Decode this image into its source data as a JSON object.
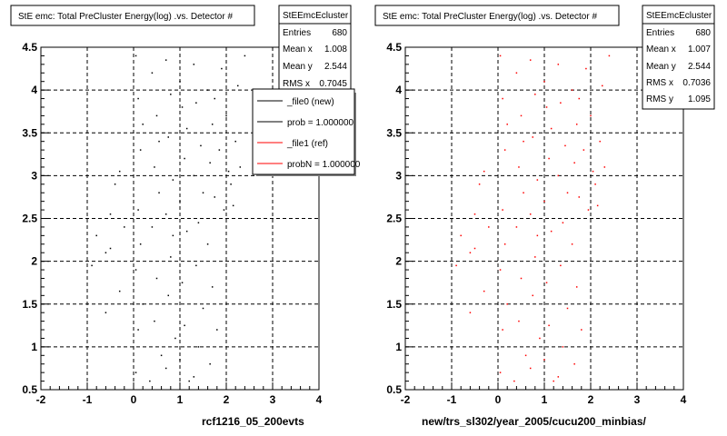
{
  "chart_data": [
    {
      "type": "scatter",
      "title": "StE emc: Total PreCluster Energy(log) .vs. Detector #",
      "xlabel": "rcf1216_05_200evts",
      "ylabel": "",
      "xlim": [
        -2,
        4
      ],
      "ylim": [
        0.5,
        4.5
      ],
      "xticks": [
        "-2",
        "-1",
        "0",
        "1",
        "2",
        "3",
        "4"
      ],
      "yticks": [
        "0.5",
        "1",
        "1.5",
        "2",
        "2.5",
        "3",
        "3.5",
        "4",
        "4.5"
      ],
      "grid": true,
      "series": [
        {
          "name": "_file0 (new)",
          "color": "#000000",
          "values": [
            [
              -0.5,
              2.15
            ],
            [
              -0.3,
              1.65
            ],
            [
              -0.2,
              2.4
            ],
            [
              -0.8,
              2.3
            ],
            [
              -0.4,
              2.9
            ],
            [
              -0.6,
              2.1
            ],
            [
              -0.3,
              3.05
            ],
            [
              -0.9,
              1.95
            ],
            [
              -0.5,
              2.55
            ],
            [
              -0.6,
              1.4
            ],
            [
              0.05,
              4.4
            ],
            [
              0.1,
              3.9
            ],
            [
              0.15,
              3.3
            ],
            [
              0.1,
              2.6
            ],
            [
              0.05,
              1.9
            ],
            [
              0.1,
              1.2
            ],
            [
              0.05,
              0.7
            ],
            [
              0.2,
              3.6
            ],
            [
              0.15,
              2.2
            ],
            [
              0.2,
              1.5
            ],
            [
              0.4,
              4.2
            ],
            [
              0.5,
              3.7
            ],
            [
              0.45,
              3.1
            ],
            [
              0.55,
              2.8
            ],
            [
              0.4,
              2.4
            ],
            [
              0.5,
              1.8
            ],
            [
              0.45,
              1.3
            ],
            [
              0.6,
              0.9
            ],
            [
              0.35,
              0.6
            ],
            [
              0.55,
              3.4
            ],
            [
              0.7,
              4.35
            ],
            [
              0.8,
              3.95
            ],
            [
              0.75,
              3.45
            ],
            [
              0.85,
              2.95
            ],
            [
              0.7,
              2.55
            ],
            [
              0.8,
              2.05
            ],
            [
              0.75,
              1.6
            ],
            [
              0.9,
              1.1
            ],
            [
              0.7,
              0.75
            ],
            [
              0.85,
              2.3
            ],
            [
              1.0,
              4.1
            ],
            [
              1.05,
              3.8
            ],
            [
              1.1,
              3.2
            ],
            [
              1.0,
              2.7
            ],
            [
              1.15,
              2.35
            ],
            [
              1.05,
              1.75
            ],
            [
              1.1,
              1.25
            ],
            [
              1.0,
              0.85
            ],
            [
              1.2,
              0.6
            ],
            [
              1.15,
              3.55
            ],
            [
              1.3,
              4.3
            ],
            [
              1.35,
              3.85
            ],
            [
              1.45,
              3.35
            ],
            [
              1.3,
              3.0
            ],
            [
              1.4,
              2.45
            ],
            [
              1.35,
              1.95
            ],
            [
              1.5,
              1.45
            ],
            [
              1.4,
              1.0
            ],
            [
              1.3,
              0.65
            ],
            [
              1.5,
              2.8
            ],
            [
              1.6,
              4.0
            ],
            [
              1.7,
              3.6
            ],
            [
              1.65,
              3.15
            ],
            [
              1.75,
              2.75
            ],
            [
              1.6,
              2.2
            ],
            [
              1.7,
              1.7
            ],
            [
              1.8,
              1.2
            ],
            [
              1.65,
              0.8
            ],
            [
              1.75,
              3.9
            ],
            [
              1.85,
              3.3
            ],
            [
              1.9,
              4.25
            ],
            [
              2.0,
              3.7
            ],
            [
              2.05,
              3.05
            ],
            [
              1.95,
              2.6
            ],
            [
              2.1,
              2.9
            ],
            [
              2.2,
              3.4
            ],
            [
              2.15,
              2.65
            ],
            [
              2.3,
              3.1
            ],
            [
              2.25,
              4.05
            ],
            [
              2.4,
              4.4
            ]
          ]
        }
      ],
      "stats": {
        "name": "StEEmcEcluster",
        "rows": [
          {
            "k": "Entries",
            "v": "680"
          },
          {
            "k": "Mean x",
            "v": "1.008"
          },
          {
            "k": "Mean y",
            "v": "2.544"
          },
          {
            "k": "RMS x",
            "v": "0.7045"
          }
        ]
      },
      "legend": [
        {
          "label": "_file0 (new)",
          "color": "#000000"
        },
        {
          "label": "prob = 1.000000",
          "color": "#000000"
        },
        {
          "label": "_file1 (ref)",
          "color": "#ff0000"
        },
        {
          "label": "probN = 1.000000",
          "color": "#ff0000"
        }
      ]
    },
    {
      "type": "scatter",
      "title": "StE emc: Total PreCluster Energy(log) .vs. Detector #",
      "xlabel": "new/trs_sl302/year_2005/cucu200_minbias/",
      "ylabel": "",
      "xlim": [
        -2,
        4
      ],
      "ylim": [
        0.5,
        4.5
      ],
      "xticks": [
        "-2",
        "-1",
        "0",
        "1",
        "2",
        "3",
        "4"
      ],
      "yticks": [
        "0.5",
        "1",
        "1.5",
        "2",
        "2.5",
        "3",
        "3.5",
        "4",
        "4.5"
      ],
      "grid": true,
      "series": [
        {
          "name": "_file1 (ref)",
          "color": "#ff0000",
          "values": [
            [
              -0.5,
              2.15
            ],
            [
              -0.3,
              1.65
            ],
            [
              -0.2,
              2.4
            ],
            [
              -0.8,
              2.3
            ],
            [
              -0.4,
              2.9
            ],
            [
              -0.6,
              2.1
            ],
            [
              -0.3,
              3.05
            ],
            [
              -0.9,
              1.95
            ],
            [
              -0.5,
              2.55
            ],
            [
              -0.6,
              1.4
            ],
            [
              0.05,
              4.4
            ],
            [
              0.1,
              3.9
            ],
            [
              0.15,
              3.3
            ],
            [
              0.1,
              2.6
            ],
            [
              0.05,
              1.9
            ],
            [
              0.1,
              1.2
            ],
            [
              0.05,
              0.7
            ],
            [
              0.2,
              3.6
            ],
            [
              0.15,
              2.2
            ],
            [
              0.2,
              1.5
            ],
            [
              0.4,
              4.2
            ],
            [
              0.5,
              3.7
            ],
            [
              0.45,
              3.1
            ],
            [
              0.55,
              2.8
            ],
            [
              0.4,
              2.4
            ],
            [
              0.5,
              1.8
            ],
            [
              0.45,
              1.3
            ],
            [
              0.6,
              0.9
            ],
            [
              0.35,
              0.6
            ],
            [
              0.55,
              3.4
            ],
            [
              0.7,
              4.35
            ],
            [
              0.8,
              3.95
            ],
            [
              0.75,
              3.45
            ],
            [
              0.85,
              2.95
            ],
            [
              0.7,
              2.55
            ],
            [
              0.8,
              2.05
            ],
            [
              0.75,
              1.6
            ],
            [
              0.9,
              1.1
            ],
            [
              0.7,
              0.75
            ],
            [
              0.85,
              2.3
            ],
            [
              1.0,
              4.1
            ],
            [
              1.05,
              3.8
            ],
            [
              1.1,
              3.2
            ],
            [
              1.0,
              2.7
            ],
            [
              1.15,
              2.35
            ],
            [
              1.05,
              1.75
            ],
            [
              1.1,
              1.25
            ],
            [
              1.0,
              0.85
            ],
            [
              1.2,
              0.6
            ],
            [
              1.15,
              3.55
            ],
            [
              1.3,
              4.3
            ],
            [
              1.35,
              3.85
            ],
            [
              1.45,
              3.35
            ],
            [
              1.3,
              3.0
            ],
            [
              1.4,
              2.45
            ],
            [
              1.35,
              1.95
            ],
            [
              1.5,
              1.45
            ],
            [
              1.4,
              1.0
            ],
            [
              1.3,
              0.65
            ],
            [
              1.5,
              2.8
            ],
            [
              1.6,
              4.0
            ],
            [
              1.7,
              3.6
            ],
            [
              1.65,
              3.15
            ],
            [
              1.75,
              2.75
            ],
            [
              1.6,
              2.2
            ],
            [
              1.7,
              1.7
            ],
            [
              1.8,
              1.2
            ],
            [
              1.65,
              0.8
            ],
            [
              1.75,
              3.9
            ],
            [
              1.85,
              3.3
            ],
            [
              1.9,
              4.25
            ],
            [
              2.0,
              3.7
            ],
            [
              2.05,
              3.05
            ],
            [
              1.95,
              2.6
            ],
            [
              2.1,
              2.9
            ],
            [
              2.2,
              3.4
            ],
            [
              2.15,
              2.65
            ],
            [
              2.3,
              3.1
            ],
            [
              2.25,
              4.05
            ],
            [
              2.4,
              4.4
            ]
          ]
        }
      ],
      "stats": {
        "name": "StEEmcEcluster",
        "rows": [
          {
            "k": "Entries",
            "v": "680"
          },
          {
            "k": "Mean x",
            "v": "1.007"
          },
          {
            "k": "Mean y",
            "v": "2.544"
          },
          {
            "k": "RMS x",
            "v": "0.7036"
          },
          {
            "k": "RMS y",
            "v": "1.095"
          }
        ]
      }
    }
  ]
}
